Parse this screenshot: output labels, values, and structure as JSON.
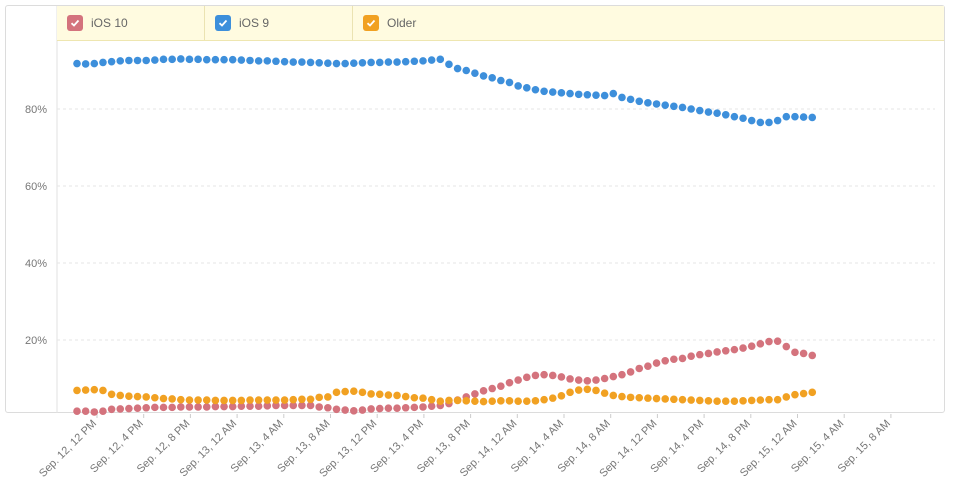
{
  "legend": [
    {
      "label": "iOS 10",
      "color": "#d4737d"
    },
    {
      "label": "iOS 9",
      "color": "#3d8fdb"
    },
    {
      "label": "Older",
      "color": "#f1a122"
    }
  ],
  "chart_data": {
    "type": "scatter",
    "y_ticks": [
      "20%",
      "40%",
      "60%",
      "80%"
    ],
    "y_tick_values": [
      20,
      40,
      60,
      80
    ],
    "ylim": [
      0,
      100
    ],
    "grid": true,
    "legend_position": "top",
    "x_labels": [
      "Sep. 12, 12 PM",
      "Sep. 12, 4 PM",
      "Sep. 12, 8 PM",
      "Sep. 13, 12 AM",
      "Sep. 13, 4 AM",
      "Sep. 13, 8 AM",
      "Sep. 13, 12 PM",
      "Sep. 13, 4 PM",
      "Sep. 13, 8 PM",
      "Sep. 14, 12 AM",
      "Sep. 14, 4 AM",
      "Sep. 14, 8 AM",
      "Sep. 14, 12 PM",
      "Sep. 14, 4 PM",
      "Sep. 14, 8 PM",
      "Sep. 15, 12 AM",
      "Sep. 15, 4 AM",
      "Sep. 15, 8 AM"
    ],
    "x_start_hour": 8,
    "x_step_hours": 0.5,
    "series": [
      {
        "name": "iOS 10",
        "color": "#d4737d",
        "values": [
          1.5,
          1.5,
          1.3,
          1.5,
          2.0,
          2.1,
          2.2,
          2.3,
          2.4,
          2.5,
          2.5,
          2.5,
          2.6,
          2.6,
          2.6,
          2.6,
          2.7,
          2.7,
          2.7,
          2.8,
          2.8,
          2.8,
          2.9,
          3.0,
          3.0,
          3.0,
          3.0,
          3.0,
          2.6,
          2.4,
          2.0,
          1.8,
          1.6,
          1.8,
          2.1,
          2.2,
          2.3,
          2.3,
          2.4,
          2.5,
          2.6,
          2.8,
          3.0,
          3.5,
          4.4,
          5.2,
          6.0,
          6.8,
          7.4,
          8.0,
          8.9,
          9.6,
          10.3,
          10.8,
          11.0,
          10.8,
          10.4,
          9.9,
          9.6,
          9.4,
          9.6,
          10.0,
          10.5,
          11.0,
          11.7,
          12.6,
          13.2,
          14.0,
          14.6,
          15.0,
          15.2,
          15.8,
          16.2,
          16.5,
          16.9,
          17.2,
          17.5,
          17.9,
          18.4,
          19.0,
          19.6,
          19.7,
          18.3,
          16.8,
          16.5,
          16.0
        ]
      },
      {
        "name": "iOS 9",
        "color": "#3d8fdb",
        "values": [
          91.8,
          91.7,
          91.8,
          92.1,
          92.3,
          92.5,
          92.6,
          92.6,
          92.6,
          92.7,
          92.9,
          92.9,
          93.0,
          92.9,
          92.9,
          92.8,
          92.8,
          92.8,
          92.8,
          92.7,
          92.6,
          92.5,
          92.5,
          92.4,
          92.3,
          92.2,
          92.2,
          92.1,
          92.0,
          91.9,
          91.8,
          91.8,
          91.9,
          92.0,
          92.1,
          92.1,
          92.2,
          92.2,
          92.3,
          92.4,
          92.5,
          92.7,
          92.9,
          91.6,
          90.5,
          90.0,
          89.3,
          88.6,
          88.1,
          87.4,
          86.9,
          86.0,
          85.5,
          85.0,
          84.6,
          84.4,
          84.2,
          84.0,
          83.8,
          83.7,
          83.6,
          83.5,
          84.0,
          83.0,
          82.5,
          82.0,
          81.6,
          81.3,
          81.0,
          80.7,
          80.4,
          80.0,
          79.6,
          79.2,
          78.9,
          78.5,
          78.0,
          77.6,
          77.0,
          76.5,
          76.5,
          77.0,
          78.0,
          78.0,
          77.9,
          77.8
        ]
      },
      {
        "name": "Older",
        "color": "#f1a122",
        "values": [
          6.9,
          7.0,
          7.1,
          6.9,
          5.9,
          5.6,
          5.4,
          5.3,
          5.2,
          5.0,
          4.8,
          4.7,
          4.5,
          4.4,
          4.4,
          4.4,
          4.3,
          4.3,
          4.3,
          4.3,
          4.4,
          4.4,
          4.4,
          4.4,
          4.4,
          4.5,
          4.6,
          4.6,
          5.1,
          5.2,
          6.4,
          6.6,
          6.7,
          6.4,
          6.0,
          5.9,
          5.7,
          5.6,
          5.3,
          5.0,
          4.9,
          4.5,
          4.1,
          4.3,
          4.3,
          4.2,
          4.1,
          4.0,
          4.1,
          4.2,
          4.2,
          4.1,
          4.1,
          4.2,
          4.5,
          4.9,
          5.5,
          6.4,
          7.0,
          7.2,
          6.9,
          6.2,
          5.6,
          5.3,
          5.1,
          5.0,
          4.9,
          4.8,
          4.7,
          4.6,
          4.5,
          4.4,
          4.3,
          4.2,
          4.1,
          4.1,
          4.1,
          4.2,
          4.3,
          4.4,
          4.5,
          4.5,
          5.2,
          5.8,
          6.1,
          6.4
        ]
      }
    ]
  }
}
